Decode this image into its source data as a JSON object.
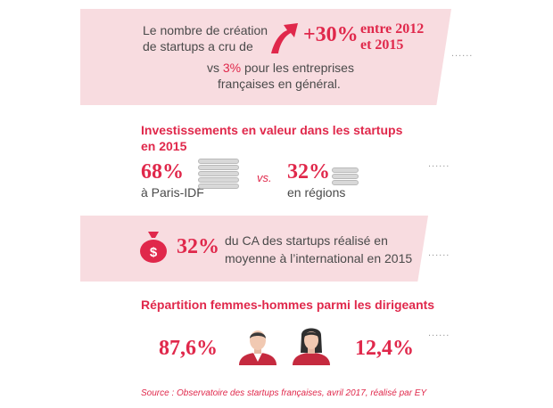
{
  "colors": {
    "accent": "#e0284b",
    "band": "#f8dce0",
    "text": "#4a4a4a"
  },
  "growth": {
    "text_line1": "Le nombre de création",
    "text_line2": "de startups a cru de",
    "icon": "arrow-up-icon",
    "value": "+30%",
    "period_line1": "entre 2012",
    "period_line2": "et 2015",
    "compare_prefix": "vs ",
    "compare_value": "3%",
    "compare_suffix": " pour les entreprises",
    "compare_line2": "françaises en général."
  },
  "investments": {
    "title_line1": "Investissements en valeur dans les startups",
    "title_line2": "en 2015",
    "paris_value": "68%",
    "paris_label": "à Paris-IDF",
    "vs": "vs.",
    "regions_value": "32%",
    "regions_label": "en régions",
    "icon": "coin-stack-icon"
  },
  "international": {
    "icon": "money-bag-icon",
    "value": "32%",
    "text_line1": "du CA des startups réalisé en",
    "text_line2": "moyenne à l’international en 2015"
  },
  "gender": {
    "title": "Répartition femmes-hommes parmi les dirigeants",
    "men_value": "87,6%",
    "women_value": "12,4%",
    "men_icon": "man-avatar-icon",
    "women_icon": "woman-avatar-icon"
  },
  "source": "Source : Observatoire des startups françaises, avril 2017, réalisé par EY",
  "dots": "......"
}
